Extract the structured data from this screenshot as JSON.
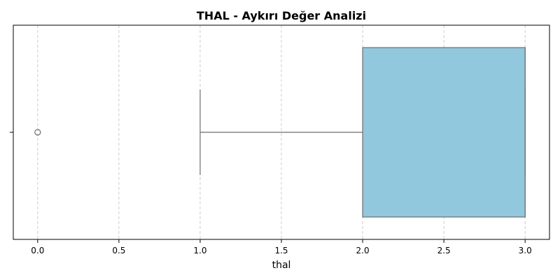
{
  "chart_data": {
    "type": "box",
    "orientation": "horizontal",
    "title": "THAL - Aykırı Değer Analizi",
    "xlabel": "thal",
    "ylabel": "",
    "xlim": [
      -0.15,
      3.15
    ],
    "xticks": [
      0.0,
      0.5,
      1.0,
      1.5,
      2.0,
      2.5,
      3.0
    ],
    "xtick_labels": [
      "0.0",
      "0.5",
      "1.0",
      "1.5",
      "2.0",
      "2.5",
      "3.0"
    ],
    "grid": "x-dashed",
    "legend": "none",
    "series": [
      {
        "whisker_low": 1.0,
        "q1": 2.0,
        "median": 3.0,
        "q3": 3.0,
        "whisker_high": 3.0,
        "outliers": [
          0.0
        ]
      }
    ],
    "colors": {
      "box_fill": "#92c8de",
      "box_edge": "#6e6e6e",
      "grid": "#cccccc",
      "axis": "#000000"
    }
  }
}
